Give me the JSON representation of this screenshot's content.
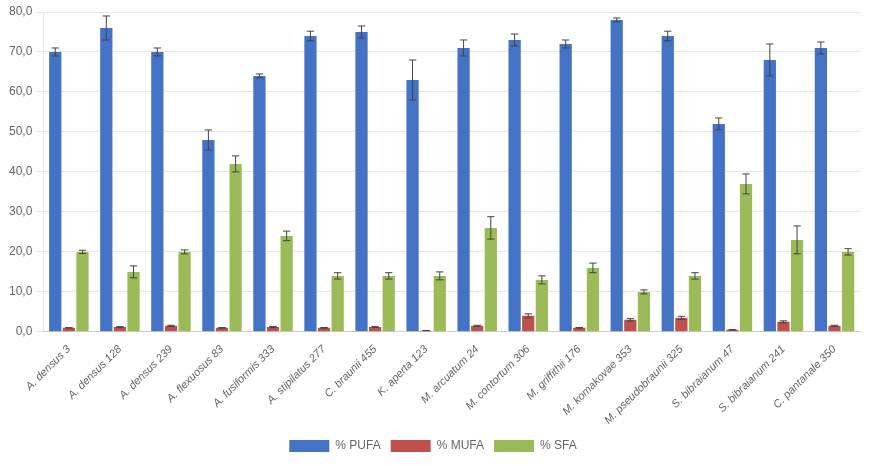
{
  "chart_data": {
    "type": "bar",
    "categories": [
      "A. densus 3",
      "A. densus 128",
      "A. densus 239",
      "A. flexuosus 83",
      "A. fusiformis 333",
      "A. stipilatus 277",
      "C. braunii 455",
      "K. aperta 123",
      "M. arcuatum 24",
      "M. contortum 306",
      "M. griffithii 176",
      "M. komakovae 353",
      "M. pseudobraunii 325",
      "S. bibraianum 47",
      "S. bibraianum 241",
      "C. pantanale 350"
    ],
    "series": [
      {
        "name": "% PUFA",
        "color": "#4472C4",
        "values": [
          70.0,
          76.0,
          70.0,
          48.0,
          64.0,
          74.0,
          75.0,
          63.0,
          71.0,
          73.0,
          72.0,
          78.0,
          74.0,
          52.0,
          68.0,
          71.0
        ],
        "errors": [
          1.0,
          3.0,
          1.0,
          2.5,
          0.5,
          1.2,
          1.5,
          5.0,
          2.0,
          1.5,
          1.0,
          0.5,
          1.2,
          1.5,
          4.0,
          1.5
        ]
      },
      {
        "name": "% MUFA",
        "color": "#C0504D",
        "values": [
          1.0,
          1.2,
          1.5,
          1.0,
          1.2,
          1.0,
          1.2,
          0.3,
          1.5,
          4.0,
          1.0,
          3.0,
          3.5,
          0.5,
          2.5,
          1.5
        ],
        "errors": [
          0.05,
          0.1,
          0.15,
          0.08,
          0.15,
          0.08,
          0.1,
          0.04,
          0.15,
          0.5,
          0.08,
          0.3,
          0.4,
          0.04,
          0.25,
          0.15
        ]
      },
      {
        "name": "% SFA",
        "color": "#9BBB59",
        "values": [
          20.0,
          15.0,
          20.0,
          42.0,
          24.0,
          14.0,
          14.0,
          14.0,
          26.0,
          13.0,
          16.0,
          10.0,
          14.0,
          37.0,
          23.0,
          20.0
        ],
        "errors": [
          0.4,
          1.5,
          0.5,
          2.0,
          1.2,
          0.8,
          0.8,
          1.0,
          2.8,
          1.0,
          1.2,
          0.5,
          0.8,
          2.5,
          3.5,
          0.8
        ]
      }
    ],
    "ylim": [
      0,
      80
    ],
    "yticks": [
      {
        "value": 0,
        "label": "0,0"
      },
      {
        "value": 10,
        "label": "10,0"
      },
      {
        "value": 20,
        "label": "20,0"
      },
      {
        "value": 30,
        "label": "30,0"
      },
      {
        "value": 40,
        "label": "40,0"
      },
      {
        "value": 50,
        "label": "50,0"
      },
      {
        "value": 60,
        "label": "60,0"
      },
      {
        "value": 70,
        "label": "70,0"
      },
      {
        "value": 80,
        "label": "80,0"
      }
    ],
    "grid": true,
    "legend": "bottom"
  }
}
